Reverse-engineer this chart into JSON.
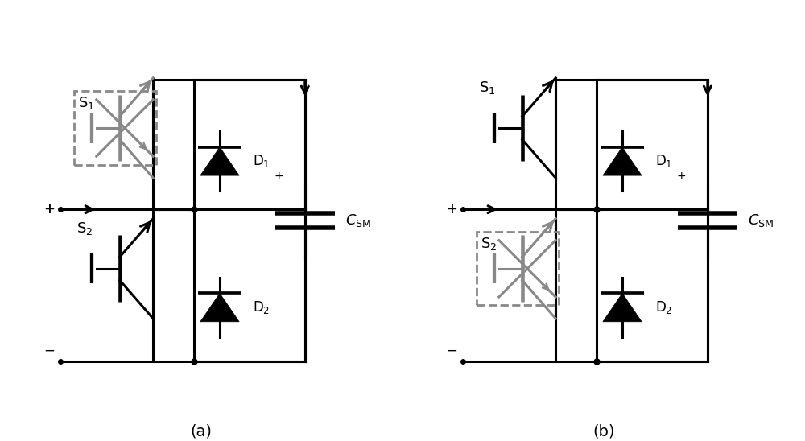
{
  "fig_width": 10.0,
  "fig_height": 5.48,
  "dpi": 100,
  "background": "#ffffff",
  "line_color": "#000000",
  "gray_color": "#888888",
  "dash_color": "#888888",
  "lw": 2.2,
  "label_a": "(a)",
  "label_b": "(b)"
}
